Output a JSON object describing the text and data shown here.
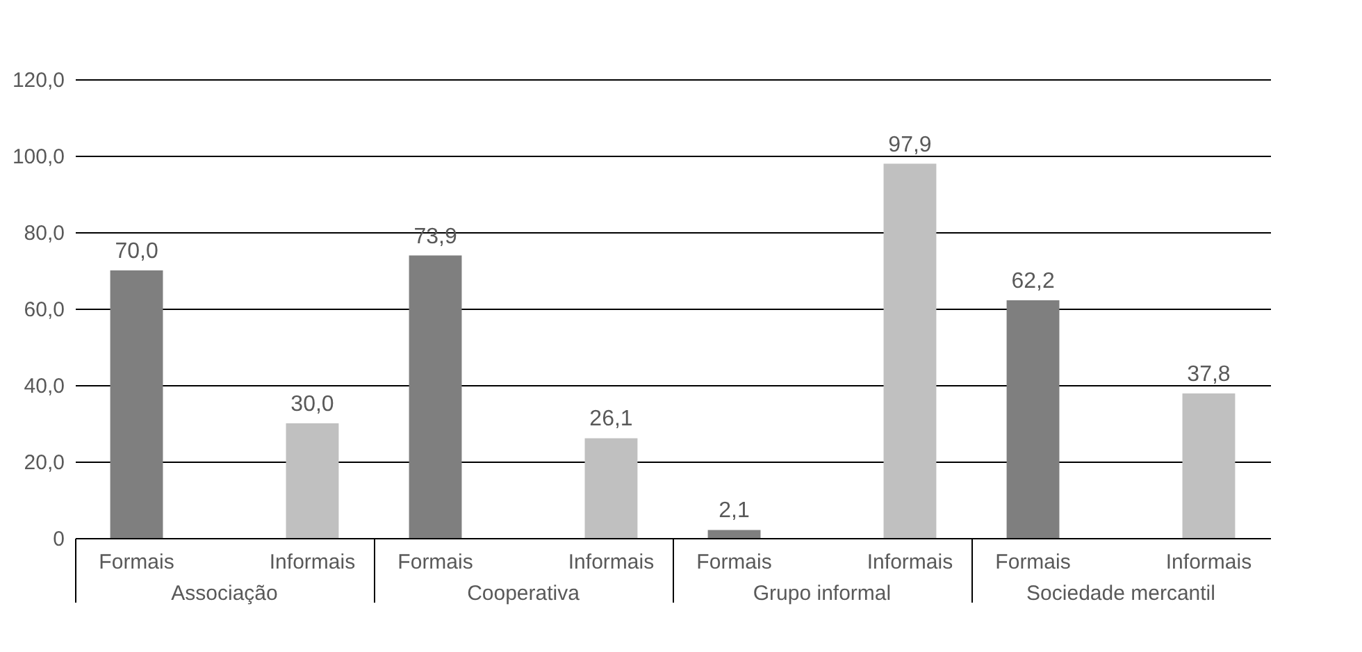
{
  "chart_data": {
    "type": "bar",
    "categories": [
      "Associação",
      "Cooperativa",
      "Grupo informal",
      "Sociedade mercantil"
    ],
    "series": [
      {
        "name": "Formais",
        "color": "#7f7f7f",
        "values": [
          70.0,
          73.9,
          2.1,
          62.2
        ],
        "value_labels": [
          "70,0",
          "73,9",
          "2,1",
          "62,2"
        ]
      },
      {
        "name": "Informais",
        "color": "#c0c0c0",
        "values": [
          30.0,
          26.1,
          97.9,
          37.8
        ],
        "value_labels": [
          "30,0",
          "26,1",
          "97,9",
          "37,8"
        ]
      }
    ],
    "ylim": [
      0,
      120
    ],
    "yticks": [
      0,
      {
        "value": 20,
        "label": "20,0"
      },
      {
        "value": 40,
        "label": "40,0"
      },
      {
        "value": 60,
        "label": "60,0"
      },
      {
        "value": 80,
        "label": "80,0"
      },
      {
        "value": 100,
        "label": "100,0"
      },
      {
        "value": 120,
        "label": "120,0"
      }
    ],
    "grid": "y",
    "legend": false
  }
}
